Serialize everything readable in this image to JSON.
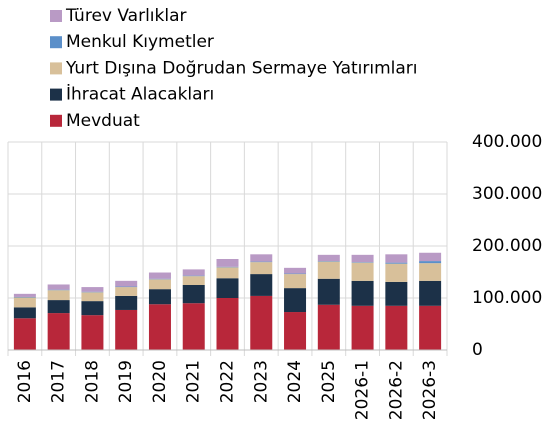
{
  "chart_data": {
    "type": "stacked_bar",
    "categories": [
      "2016",
      "2017",
      "2018",
      "2019",
      "2020",
      "2021",
      "2022",
      "2023",
      "2024",
      "2025",
      "2026-1",
      "2026-2",
      "2026-3"
    ],
    "series": [
      {
        "name": "Mevduat",
        "color": "#b8273a",
        "values": [
          61000,
          71000,
          67000,
          77000,
          88000,
          90000,
          100000,
          104000,
          73000,
          87000,
          85000,
          85000,
          85000
        ]
      },
      {
        "name": "İhracat Alacakları",
        "color": "#1c3148",
        "values": [
          21000,
          25000,
          27000,
          27000,
          29000,
          35000,
          38000,
          42000,
          46000,
          50000,
          48000,
          46000,
          48000
        ]
      },
      {
        "name": "Yurt Dışına Doğrudan Sermaye Yatırımları",
        "color": "#d8c09a",
        "values": [
          19000,
          19000,
          17000,
          17000,
          19000,
          17000,
          21000,
          23000,
          27000,
          33000,
          35000,
          35000,
          34000
        ]
      },
      {
        "name": "Menkul Kıymetler",
        "color": "#5b8fc9",
        "values": [
          1000,
          1000,
          1000,
          1000,
          1000,
          1000,
          1000,
          1000,
          1000,
          1000,
          1000,
          2000,
          4000
        ]
      },
      {
        "name": "Türev Varlıklar",
        "color": "#b99ac5",
        "values": [
          6000,
          10000,
          9000,
          11000,
          12000,
          12000,
          15000,
          14000,
          11000,
          12000,
          14000,
          16000,
          16000
        ]
      }
    ],
    "ylim": [
      0,
      400000
    ],
    "yticks": [
      0,
      {
        "value": 100000,
        "label": "100.000"
      },
      {
        "value": 200000,
        "label": "200.000"
      },
      {
        "value": 300000,
        "label": "300.000"
      },
      {
        "value": 400000,
        "label": "400.000"
      }
    ],
    "grid": true,
    "legend": "top-left"
  }
}
